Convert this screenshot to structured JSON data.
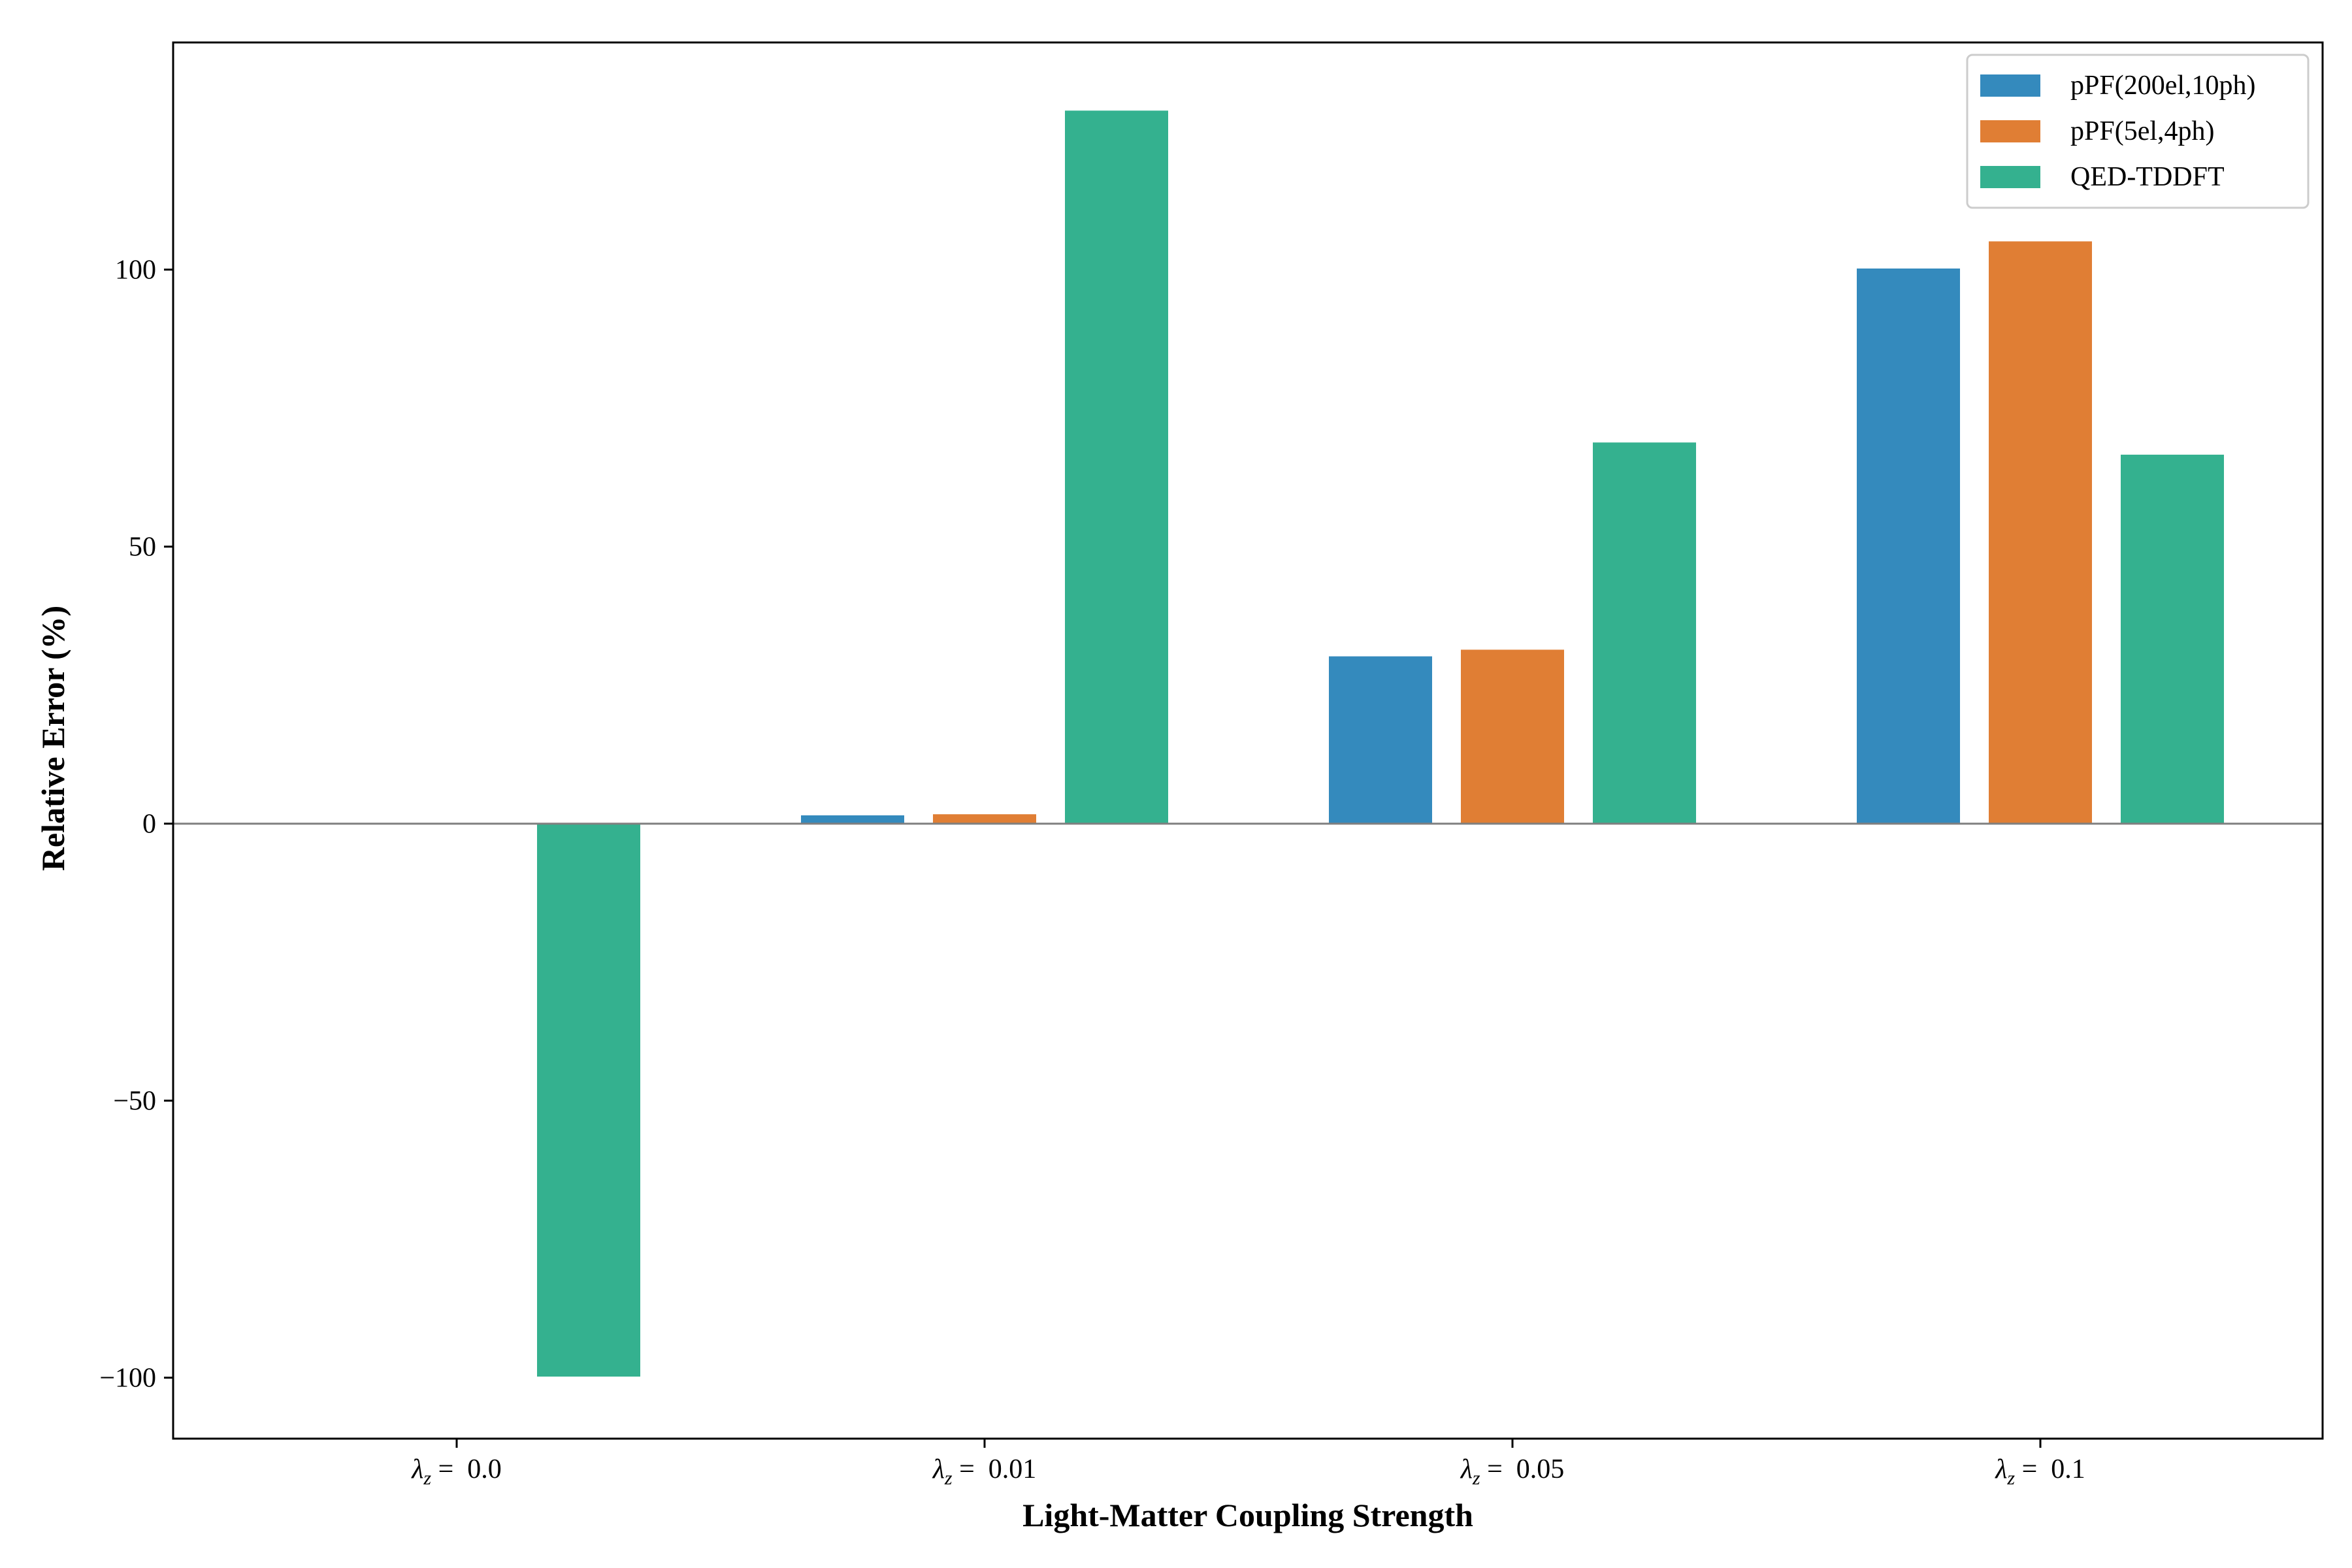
{
  "chart_data": {
    "type": "bar",
    "categories": [
      "0.0",
      "0.01",
      "0.05",
      "0.1"
    ],
    "category_prefix": "λ_z =",
    "series": [
      {
        "name": "pPF(200el,10ph)",
        "color": "#348ABD",
        "values": [
          0,
          1.5,
          30.2,
          100.2
        ]
      },
      {
        "name": "pPF(5el,4ph)",
        "color": "#E07E34",
        "values": [
          0,
          1.7,
          31.4,
          105.1
        ]
      },
      {
        "name": "QED-TDDFT",
        "color": "#34B18F",
        "values": [
          -99.8,
          128.7,
          68.8,
          66.6
        ]
      }
    ],
    "xlabel": "Light-Matter Coupling Strength",
    "ylabel": "Relative Error (%)",
    "ylim": [
      -111,
      141
    ],
    "yticks": [
      -100,
      -50,
      0,
      50,
      100
    ],
    "ytick_labels": [
      "−100",
      "−50",
      "0",
      "50",
      "100"
    ],
    "zero_line": true,
    "grid": false,
    "legend_position": "top-right"
  }
}
